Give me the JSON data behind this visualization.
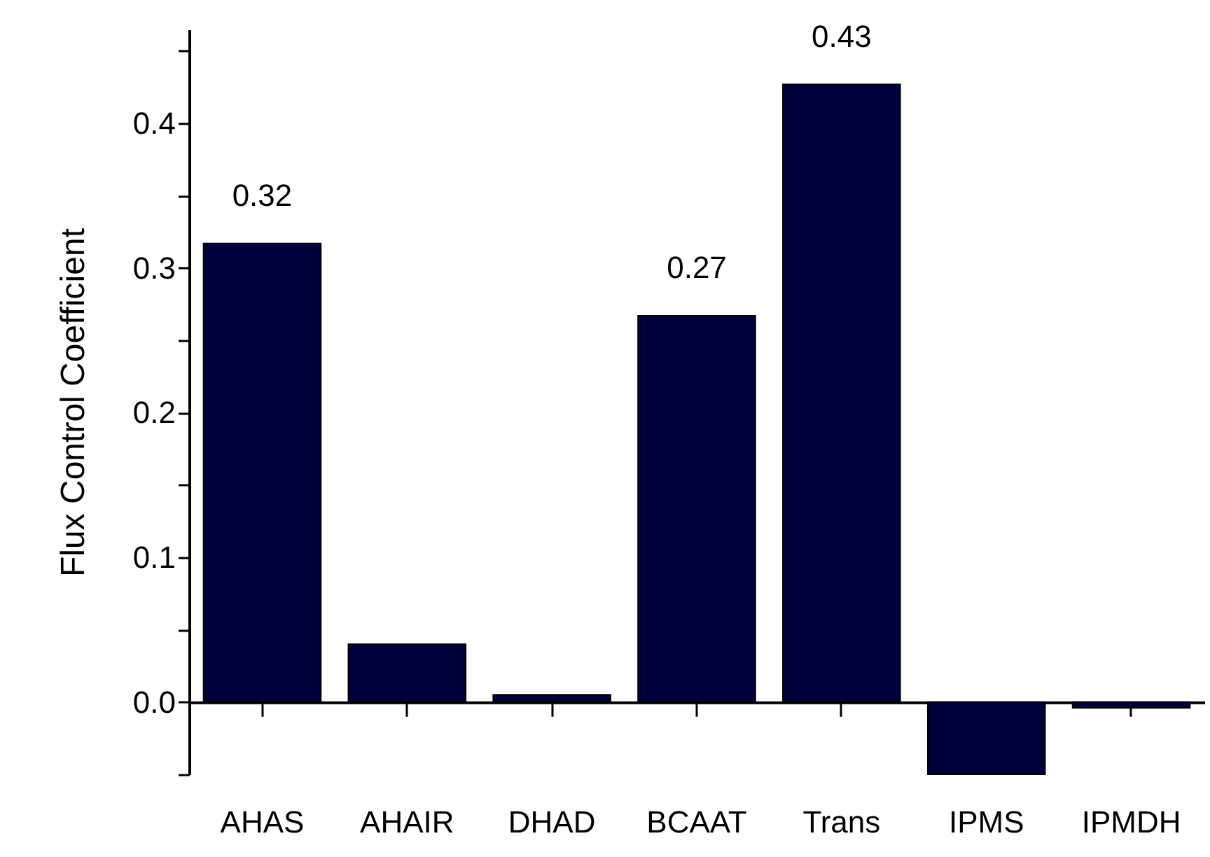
{
  "chart_data": {
    "type": "bar",
    "ylabel": "Flux Control Coefficient",
    "categories": [
      "AHAS",
      "AHAIR",
      "DHAD",
      "BCAAT",
      "Trans",
      "IPMS",
      "IPMDH"
    ],
    "values": [
      0.317,
      0.04,
      0.005,
      0.267,
      0.427,
      -0.05,
      -0.004
    ],
    "value_labels": [
      "0.32",
      null,
      null,
      "0.27",
      "0.43",
      null,
      null
    ],
    "color": "#00003a",
    "ylim": [
      -0.05,
      0.465
    ],
    "yticks": [
      {
        "value": -0.05,
        "label": null
      },
      {
        "value": 0,
        "label": "0.0"
      },
      {
        "value": 0.05,
        "label": null
      },
      0.1,
      {
        "value": 0.15,
        "label": null
      },
      0.2,
      {
        "value": 0.25,
        "label": null
      },
      0.3,
      {
        "value": 0.35,
        "label": null
      },
      0.4,
      {
        "value": 0.45,
        "label": null
      }
    ],
    "tick_labels": "xy"
  }
}
